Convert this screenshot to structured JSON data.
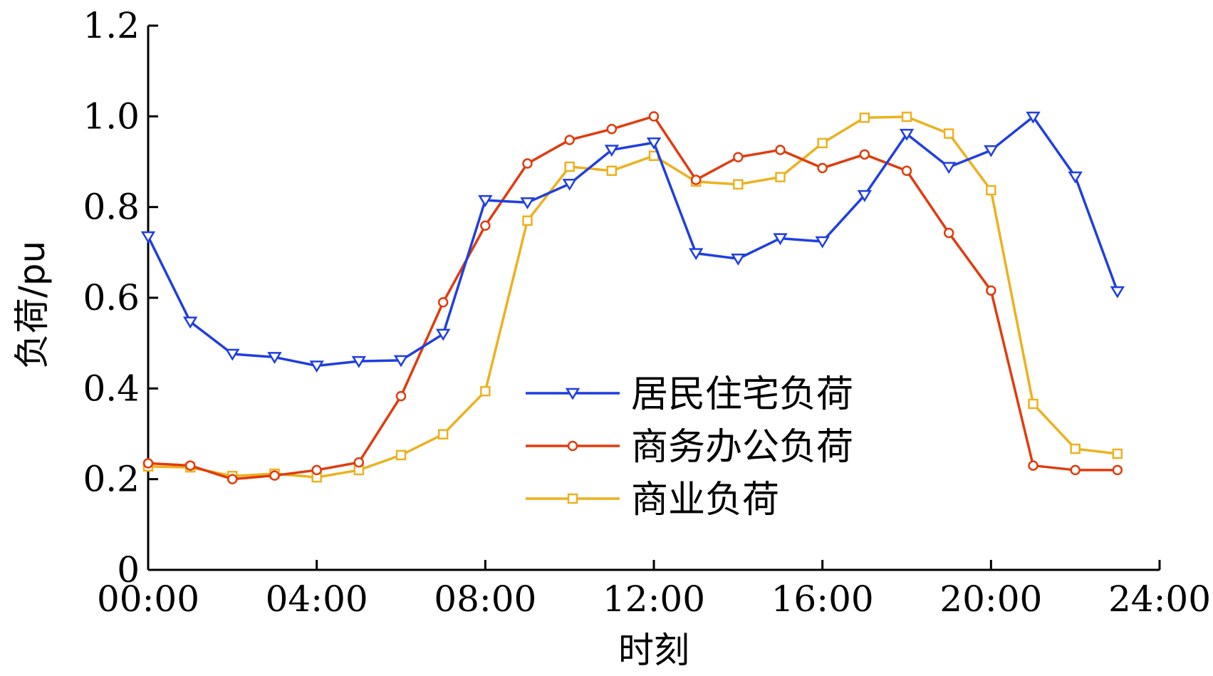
{
  "chart_data": {
    "type": "line",
    "title": "",
    "xlabel": "时刻",
    "ylabel": "负荷/pu",
    "xlim": [
      0,
      24
    ],
    "ylim": [
      0,
      1.2
    ],
    "xticks": [
      0,
      4,
      8,
      12,
      16,
      20,
      24
    ],
    "xtick_labels": [
      "00:00",
      "04:00",
      "08:00",
      "12:00",
      "16:00",
      "20:00",
      "24:00"
    ],
    "yticks": [
      0,
      0.2,
      0.4,
      0.6,
      0.8,
      1.0,
      1.2
    ],
    "ytick_labels": [
      "0",
      "0.2",
      "0.4",
      "0.6",
      "0.8",
      "1.0",
      "1.2"
    ],
    "grid": false,
    "legend_position": "center",
    "x": [
      0,
      1,
      2,
      3,
      4,
      5,
      6,
      7,
      8,
      9,
      10,
      11,
      12,
      13,
      14,
      15,
      16,
      17,
      18,
      19,
      20,
      21,
      22,
      23
    ],
    "series": [
      {
        "name": "居民住宅负荷",
        "color": "#1f3fdf",
        "marker": "triangle-down",
        "values": [
          0.735,
          0.547,
          0.476,
          0.469,
          0.45,
          0.46,
          0.462,
          0.52,
          0.815,
          0.81,
          0.851,
          0.926,
          0.942,
          0.698,
          0.686,
          0.731,
          0.724,
          0.826,
          0.961,
          0.888,
          0.925,
          0.999,
          0.867,
          0.614
        ]
      },
      {
        "name": "商务办公负荷",
        "color": "#e03c0e",
        "marker": "circle",
        "values": [
          0.235,
          0.23,
          0.2,
          0.208,
          0.22,
          0.237,
          0.383,
          0.59,
          0.759,
          0.896,
          0.948,
          0.972,
          1.0,
          0.86,
          0.91,
          0.926,
          0.886,
          0.916,
          0.88,
          0.743,
          0.616,
          0.23,
          0.22,
          0.22
        ]
      },
      {
        "name": "商业负荷",
        "color": "#edb11f",
        "marker": "square",
        "values": [
          0.228,
          0.226,
          0.207,
          0.212,
          0.204,
          0.22,
          0.253,
          0.299,
          0.394,
          0.77,
          0.889,
          0.88,
          0.913,
          0.856,
          0.85,
          0.866,
          0.941,
          0.997,
          0.999,
          0.962,
          0.837,
          0.366,
          0.267,
          0.256
        ]
      }
    ]
  }
}
